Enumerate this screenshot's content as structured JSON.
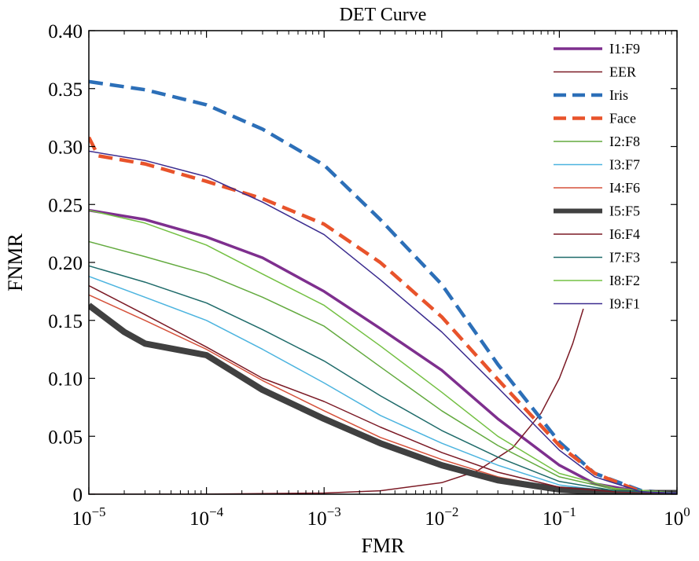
{
  "chart_data": {
    "type": "line",
    "title": "DET Curve",
    "xlabel": "FMR",
    "ylabel": "FNMR",
    "xscale": "log",
    "xlim": [
      1e-05,
      1
    ],
    "ylim": [
      0,
      0.4
    ],
    "x_ticks": [
      {
        "value": 1e-05,
        "base": "10",
        "exp": "−5"
      },
      {
        "value": 0.0001,
        "base": "10",
        "exp": "−4"
      },
      {
        "value": 0.001,
        "base": "10",
        "exp": "−3"
      },
      {
        "value": 0.01,
        "base": "10",
        "exp": "−2"
      },
      {
        "value": 0.1,
        "base": "10",
        "exp": "−1"
      },
      {
        "value": 1,
        "base": "10",
        "exp": "0"
      }
    ],
    "y_ticks": [
      {
        "value": 0,
        "label": "0"
      },
      {
        "value": 0.05,
        "label": "0.05"
      },
      {
        "value": 0.1,
        "label": "0.10"
      },
      {
        "value": 0.15,
        "label": "0.15"
      },
      {
        "value": 0.2,
        "label": "0.20"
      },
      {
        "value": 0.25,
        "label": "0.25"
      },
      {
        "value": 0.3,
        "label": "0.30"
      },
      {
        "value": 0.35,
        "label": "0.35"
      },
      {
        "value": 0.4,
        "label": "0.40"
      }
    ],
    "grid": false,
    "legend_position": "top-right",
    "series": [
      {
        "name": "I1:F9",
        "color": "#7e2f8e",
        "width": 3.5,
        "dash": "solid",
        "x": [
          1e-05,
          3e-05,
          0.0001,
          0.0003,
          0.001,
          0.003,
          0.01,
          0.03,
          0.1,
          0.2,
          0.5,
          1
        ],
        "y": [
          0.245,
          0.237,
          0.222,
          0.204,
          0.175,
          0.143,
          0.107,
          0.065,
          0.025,
          0.009,
          0.002,
          0.001
        ]
      },
      {
        "name": "EER",
        "color": "#7b1a25",
        "width": 1.5,
        "dash": "solid",
        "x": [
          1e-05,
          0.0001,
          0.001,
          0.003,
          0.01,
          0.02,
          0.04,
          0.07,
          0.1,
          0.13,
          0.16
        ],
        "y": [
          1e-05,
          0.0001,
          0.001,
          0.003,
          0.01,
          0.02,
          0.04,
          0.07,
          0.1,
          0.13,
          0.16
        ]
      },
      {
        "name": "Iris",
        "color": "#2c6fb8",
        "width": 4.5,
        "dash": "dashed",
        "x": [
          1e-05,
          3e-05,
          0.0001,
          0.0003,
          0.001,
          0.003,
          0.01,
          0.03,
          0.1,
          0.2,
          0.5,
          1
        ],
        "y": [
          0.356,
          0.349,
          0.336,
          0.315,
          0.284,
          0.237,
          0.181,
          0.112,
          0.045,
          0.018,
          0.003,
          0.001
        ]
      },
      {
        "name": "Face",
        "color": "#e8532b",
        "width": 4.5,
        "dash": "dashed",
        "x": [
          1e-05,
          1.2e-05,
          3e-05,
          0.0001,
          0.0003,
          0.001,
          0.003,
          0.01,
          0.03,
          0.1,
          0.2,
          0.5,
          1
        ],
        "y": [
          0.308,
          0.292,
          0.285,
          0.27,
          0.255,
          0.233,
          0.2,
          0.153,
          0.099,
          0.042,
          0.018,
          0.002,
          0.001
        ]
      },
      {
        "name": "I2:F8",
        "color": "#63aa3f",
        "width": 1.5,
        "dash": "solid",
        "x": [
          1e-05,
          3e-05,
          0.0001,
          0.0003,
          0.001,
          0.003,
          0.01,
          0.03,
          0.1,
          0.3,
          1
        ],
        "y": [
          0.218,
          0.205,
          0.19,
          0.17,
          0.145,
          0.11,
          0.072,
          0.042,
          0.015,
          0.004,
          0.001
        ]
      },
      {
        "name": "I3:F7",
        "color": "#4cb4df",
        "width": 1.5,
        "dash": "solid",
        "x": [
          1e-05,
          3e-05,
          0.0001,
          0.0003,
          0.001,
          0.003,
          0.01,
          0.03,
          0.1,
          0.3,
          1
        ],
        "y": [
          0.188,
          0.17,
          0.15,
          0.125,
          0.096,
          0.068,
          0.044,
          0.025,
          0.008,
          0.002,
          0.001
        ]
      },
      {
        "name": "I4:F6",
        "color": "#d5513a",
        "width": 1.5,
        "dash": "solid",
        "x": [
          1e-05,
          3e-05,
          0.0001,
          0.0003,
          0.001,
          0.003,
          0.01,
          0.03,
          0.1,
          0.3,
          1
        ],
        "y": [
          0.172,
          0.15,
          0.125,
          0.098,
          0.072,
          0.049,
          0.03,
          0.015,
          0.005,
          0.001,
          0.001
        ]
      },
      {
        "name": "I5:F5",
        "color": "#404040",
        "width": 8,
        "dash": "solid",
        "x": [
          1e-05,
          2e-05,
          3e-05,
          0.0001,
          0.0003,
          0.001,
          0.003,
          0.01,
          0.03,
          0.1,
          0.3,
          1
        ],
        "y": [
          0.163,
          0.14,
          0.13,
          0.12,
          0.09,
          0.065,
          0.044,
          0.025,
          0.012,
          0.004,
          0.001,
          0.001
        ]
      },
      {
        "name": "I6:F4",
        "color": "#7b1a25",
        "width": 1.5,
        "dash": "solid",
        "x": [
          1e-05,
          3e-05,
          0.0001,
          0.0003,
          0.001,
          0.003,
          0.01,
          0.03,
          0.1,
          0.3,
          1
        ],
        "y": [
          0.18,
          0.155,
          0.127,
          0.1,
          0.08,
          0.058,
          0.036,
          0.019,
          0.006,
          0.002,
          0.001
        ]
      },
      {
        "name": "I7:F3",
        "color": "#1f6b6a",
        "width": 1.5,
        "dash": "solid",
        "x": [
          1e-05,
          3e-05,
          0.0001,
          0.0003,
          0.001,
          0.003,
          0.01,
          0.03,
          0.1,
          0.3,
          1
        ],
        "y": [
          0.197,
          0.183,
          0.165,
          0.142,
          0.115,
          0.085,
          0.055,
          0.032,
          0.011,
          0.003,
          0.001
        ]
      },
      {
        "name": "I8:F2",
        "color": "#74c043",
        "width": 1.5,
        "dash": "solid",
        "x": [
          1e-05,
          3e-05,
          0.0001,
          0.0003,
          0.001,
          0.003,
          0.01,
          0.03,
          0.1,
          0.3,
          1
        ],
        "y": [
          0.245,
          0.234,
          0.215,
          0.19,
          0.163,
          0.128,
          0.088,
          0.05,
          0.018,
          0.005,
          0.001
        ]
      },
      {
        "name": "I9:F1",
        "color": "#3b2c8f",
        "width": 1.5,
        "dash": "solid",
        "x": [
          1e-05,
          3e-05,
          0.0001,
          0.0003,
          0.001,
          0.003,
          0.01,
          0.03,
          0.1,
          0.2,
          0.5,
          1
        ],
        "y": [
          0.296,
          0.288,
          0.274,
          0.252,
          0.224,
          0.185,
          0.14,
          0.092,
          0.038,
          0.015,
          0.002,
          0.001
        ]
      }
    ]
  }
}
